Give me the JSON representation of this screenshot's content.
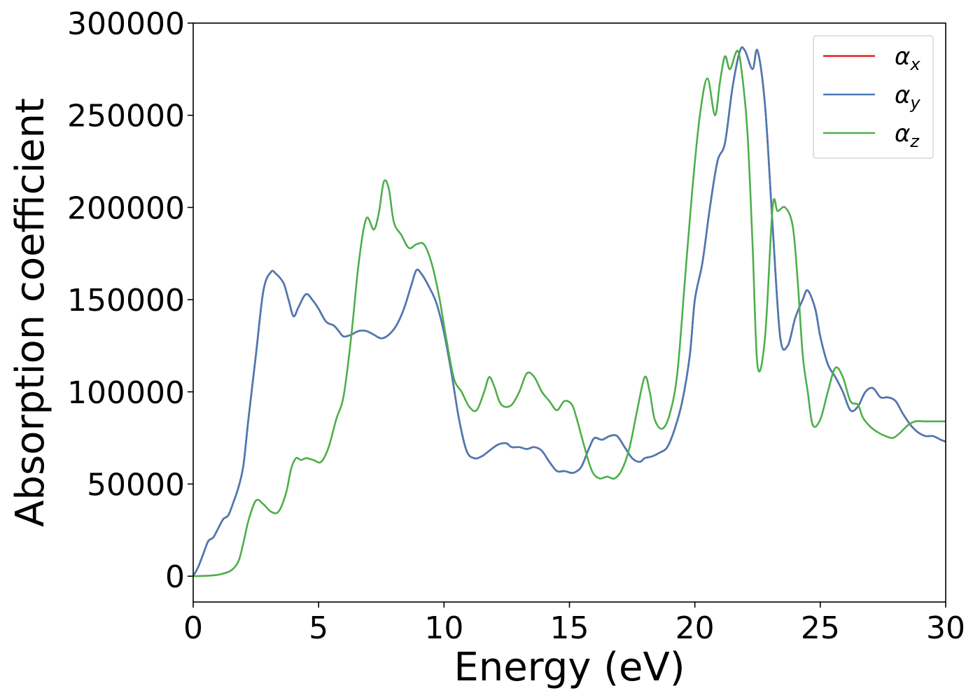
{
  "chart_data": {
    "type": "line",
    "xlabel": "Energy (eV)",
    "ylabel": "Absorption coefficient",
    "xlim": [
      0,
      30
    ],
    "ylim": [
      -14000,
      300000
    ],
    "xticks": [
      0,
      5,
      10,
      15,
      20,
      25,
      30
    ],
    "yticks": [
      0,
      50000,
      100000,
      150000,
      200000,
      250000,
      300000
    ],
    "xtick_labels": [
      "0",
      "5",
      "10",
      "15",
      "20",
      "25",
      "30"
    ],
    "ytick_labels": [
      "0",
      "50000",
      "100000",
      "150000",
      "200000",
      "250000",
      "300000"
    ],
    "grid": false,
    "legend_position": "top-right",
    "series": [
      {
        "name": "αx",
        "legend_main": "α",
        "legend_sub": "x",
        "color": "#e41a1c",
        "x": [
          0,
          0.2,
          0.4,
          0.6,
          0.8,
          1.0,
          1.2,
          1.4,
          1.6,
          1.8,
          2.0,
          2.2,
          2.5,
          2.8,
          3.1,
          3.3,
          3.6,
          3.8,
          4.0,
          4.2,
          4.5,
          4.8,
          5.0,
          5.3,
          5.6,
          5.8,
          6.0,
          6.3,
          6.6,
          6.9,
          7.2,
          7.5,
          7.8,
          8.1,
          8.4,
          8.7,
          8.9,
          9.1,
          9.4,
          9.7,
          10.0,
          10.3,
          10.6,
          10.9,
          11.2,
          11.5,
          11.8,
          12.1,
          12.3,
          12.5,
          12.7,
          13.0,
          13.3,
          13.6,
          13.9,
          14.2,
          14.5,
          14.8,
          15.1,
          15.3,
          15.5,
          15.8,
          16.0,
          16.3,
          16.6,
          16.9,
          17.2,
          17.5,
          17.8,
          18.0,
          18.3,
          18.6,
          18.9,
          19.2,
          19.5,
          19.8,
          20.0,
          20.3,
          20.6,
          20.9,
          21.2,
          21.5,
          21.8,
          22.0,
          22.3,
          22.5,
          22.8,
          23.1,
          23.4,
          23.7,
          24.0,
          24.3,
          24.5,
          24.8,
          25.0,
          25.3,
          25.6,
          25.9,
          26.2,
          26.5,
          26.8,
          27.1,
          27.4,
          27.7,
          28.0,
          28.3,
          28.6,
          28.9,
          29.2,
          29.5,
          29.8,
          30.0
        ],
        "y": [
          0,
          5000,
          12000,
          19000,
          21000,
          26000,
          31000,
          33000,
          40000,
          48000,
          60000,
          85000,
          120000,
          155000,
          165000,
          164000,
          159000,
          150000,
          141000,
          146000,
          153000,
          149000,
          145000,
          138000,
          136000,
          133000,
          130000,
          131000,
          133000,
          133000,
          131000,
          129000,
          131000,
          136000,
          145000,
          158000,
          166000,
          164000,
          157000,
          148000,
          132000,
          110000,
          85000,
          68000,
          64000,
          65000,
          68000,
          71000,
          72000,
          72000,
          70000,
          70000,
          69000,
          70000,
          68000,
          62000,
          57000,
          57000,
          56000,
          57000,
          60000,
          70000,
          75000,
          74000,
          76000,
          76000,
          70000,
          64000,
          62000,
          64000,
          65000,
          67000,
          70000,
          80000,
          95000,
          120000,
          150000,
          170000,
          200000,
          225000,
          235000,
          265000,
          285000,
          285000,
          275000,
          285000,
          255000,
          190000,
          130000,
          125000,
          140000,
          150000,
          155000,
          145000,
          130000,
          115000,
          108000,
          100000,
          90000,
          92000,
          100000,
          102000,
          97000,
          97000,
          95000,
          88000,
          82000,
          78000,
          76000,
          76000,
          74000,
          73000
        ]
      },
      {
        "name": "αy",
        "legend_main": "α",
        "legend_sub": "y",
        "color": "#4a7ab5",
        "x": [
          0,
          0.2,
          0.4,
          0.6,
          0.8,
          1.0,
          1.2,
          1.4,
          1.6,
          1.8,
          2.0,
          2.2,
          2.5,
          2.8,
          3.1,
          3.3,
          3.6,
          3.8,
          4.0,
          4.2,
          4.5,
          4.8,
          5.0,
          5.3,
          5.6,
          5.8,
          6.0,
          6.3,
          6.6,
          6.9,
          7.2,
          7.5,
          7.8,
          8.1,
          8.4,
          8.7,
          8.9,
          9.1,
          9.4,
          9.7,
          10.0,
          10.3,
          10.6,
          10.9,
          11.2,
          11.5,
          11.8,
          12.1,
          12.3,
          12.5,
          12.7,
          13.0,
          13.3,
          13.6,
          13.9,
          14.2,
          14.5,
          14.8,
          15.1,
          15.3,
          15.5,
          15.8,
          16.0,
          16.3,
          16.6,
          16.9,
          17.2,
          17.5,
          17.8,
          18.0,
          18.3,
          18.6,
          18.9,
          19.2,
          19.5,
          19.8,
          20.0,
          20.3,
          20.6,
          20.9,
          21.2,
          21.5,
          21.8,
          22.0,
          22.3,
          22.5,
          22.8,
          23.1,
          23.4,
          23.7,
          24.0,
          24.3,
          24.5,
          24.8,
          25.0,
          25.3,
          25.6,
          25.9,
          26.2,
          26.5,
          26.8,
          27.1,
          27.4,
          27.7,
          28.0,
          28.3,
          28.6,
          28.9,
          29.2,
          29.5,
          29.8,
          30.0
        ],
        "y": [
          0,
          5000,
          12000,
          19000,
          21000,
          26000,
          31000,
          33000,
          40000,
          48000,
          60000,
          85000,
          120000,
          155000,
          165000,
          164000,
          159000,
          150000,
          141000,
          146000,
          153000,
          149000,
          145000,
          138000,
          136000,
          133000,
          130000,
          131000,
          133000,
          133000,
          131000,
          129000,
          131000,
          136000,
          145000,
          158000,
          166000,
          164000,
          157000,
          148000,
          132000,
          110000,
          85000,
          68000,
          64000,
          65000,
          68000,
          71000,
          72000,
          72000,
          70000,
          70000,
          69000,
          70000,
          68000,
          62000,
          57000,
          57000,
          56000,
          57000,
          60000,
          70000,
          75000,
          74000,
          76000,
          76000,
          70000,
          64000,
          62000,
          64000,
          65000,
          67000,
          70000,
          80000,
          95000,
          120000,
          150000,
          170000,
          200000,
          225000,
          235000,
          265000,
          285000,
          285000,
          275000,
          285000,
          255000,
          190000,
          130000,
          125000,
          140000,
          150000,
          155000,
          145000,
          130000,
          115000,
          108000,
          100000,
          90000,
          92000,
          100000,
          102000,
          97000,
          97000,
          95000,
          88000,
          82000,
          78000,
          76000,
          76000,
          74000,
          73000
        ]
      },
      {
        "name": "αz",
        "legend_main": "α",
        "legend_sub": "z",
        "color": "#4daf4a",
        "x": [
          0,
          0.5,
          1.0,
          1.5,
          1.8,
          2.0,
          2.2,
          2.5,
          2.8,
          3.1,
          3.4,
          3.7,
          3.9,
          4.1,
          4.3,
          4.5,
          4.8,
          5.1,
          5.4,
          5.7,
          6.0,
          6.3,
          6.6,
          6.9,
          7.2,
          7.4,
          7.6,
          7.8,
          8.0,
          8.3,
          8.6,
          8.9,
          9.2,
          9.5,
          9.8,
          10.1,
          10.4,
          10.7,
          11.0,
          11.3,
          11.6,
          11.8,
          12.0,
          12.2,
          12.4,
          12.7,
          13.0,
          13.3,
          13.6,
          13.9,
          14.2,
          14.5,
          14.8,
          15.1,
          15.3,
          15.6,
          15.9,
          16.2,
          16.5,
          16.8,
          17.1,
          17.4,
          17.7,
          18.0,
          18.2,
          18.4,
          18.7,
          19.0,
          19.3,
          19.6,
          19.9,
          20.2,
          20.5,
          20.8,
          21.0,
          21.2,
          21.4,
          21.7,
          21.9,
          22.1,
          22.3,
          22.5,
          22.8,
          23.1,
          23.3,
          23.6,
          23.9,
          24.1,
          24.3,
          24.5,
          24.7,
          25.0,
          25.3,
          25.6,
          25.9,
          26.2,
          26.5,
          26.7,
          27.0,
          27.3,
          27.6,
          27.9,
          28.2,
          28.5,
          28.8,
          29.1,
          29.4,
          29.7,
          30.0
        ],
        "y": [
          0,
          200,
          800,
          3000,
          8000,
          18000,
          30000,
          41000,
          39000,
          35000,
          35000,
          45000,
          58000,
          64000,
          63000,
          64000,
          63000,
          62000,
          70000,
          85000,
          98000,
          130000,
          170000,
          194000,
          188000,
          197000,
          214000,
          210000,
          192000,
          185000,
          178000,
          180000,
          180000,
          170000,
          152000,
          128000,
          107000,
          100000,
          92000,
          90000,
          100000,
          108000,
          103000,
          95000,
          92000,
          93000,
          100000,
          110000,
          108000,
          100000,
          95000,
          90000,
          95000,
          93000,
          85000,
          70000,
          57000,
          53000,
          54000,
          53000,
          58000,
          70000,
          90000,
          108000,
          100000,
          85000,
          80000,
          88000,
          110000,
          160000,
          210000,
          250000,
          270000,
          250000,
          268000,
          282000,
          275000,
          285000,
          270000,
          240000,
          180000,
          114000,
          130000,
          200000,
          198000,
          200000,
          190000,
          160000,
          120000,
          100000,
          82000,
          85000,
          100000,
          113000,
          108000,
          95000,
          93000,
          86000,
          81000,
          78000,
          76000,
          75000,
          78000,
          82000,
          84000,
          84000,
          84000,
          84000,
          84000
        ]
      }
    ]
  }
}
